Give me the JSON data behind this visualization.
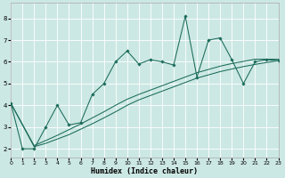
{
  "xlabel": "Humidex (Indice chaleur)",
  "bg_color": "#cce8e4",
  "line_color": "#1a6b5a",
  "xlim": [
    0,
    23
  ],
  "ylim": [
    1.6,
    8.7
  ],
  "xticks": [
    0,
    1,
    2,
    3,
    4,
    5,
    6,
    7,
    8,
    9,
    10,
    11,
    12,
    13,
    14,
    15,
    16,
    17,
    18,
    19,
    20,
    21,
    22,
    23
  ],
  "yticks": [
    2,
    3,
    4,
    5,
    6,
    7,
    8
  ],
  "line1_x": [
    0,
    1,
    2,
    3,
    4,
    5,
    6,
    7,
    8,
    9,
    10,
    11,
    12,
    13,
    14,
    15,
    16,
    17,
    18,
    19,
    20,
    21,
    22,
    23
  ],
  "line1_y": [
    4.1,
    2.0,
    2.0,
    3.0,
    4.0,
    3.1,
    3.2,
    4.5,
    5.0,
    6.0,
    6.5,
    5.9,
    6.1,
    6.0,
    5.85,
    8.1,
    5.3,
    7.0,
    7.1,
    6.1,
    5.0,
    6.0,
    6.1,
    6.05
  ],
  "line2_x": [
    0,
    2,
    3,
    4,
    5,
    6,
    7,
    8,
    9,
    10,
    11,
    12,
    13,
    14,
    15,
    16,
    17,
    18,
    19,
    20,
    21,
    22,
    23
  ],
  "line2_y": [
    4.1,
    2.1,
    2.25,
    2.45,
    2.65,
    2.9,
    3.15,
    3.42,
    3.7,
    4.0,
    4.25,
    4.45,
    4.65,
    4.85,
    5.05,
    5.25,
    5.4,
    5.55,
    5.67,
    5.78,
    5.88,
    5.97,
    6.05
  ],
  "line3_x": [
    0,
    2,
    3,
    4,
    5,
    6,
    7,
    8,
    9,
    10,
    11,
    12,
    13,
    14,
    15,
    16,
    17,
    18,
    19,
    20,
    21,
    22,
    23
  ],
  "line3_y": [
    4.1,
    2.15,
    2.38,
    2.62,
    2.88,
    3.14,
    3.42,
    3.7,
    4.0,
    4.28,
    4.5,
    4.7,
    4.9,
    5.1,
    5.3,
    5.5,
    5.65,
    5.8,
    5.92,
    6.02,
    6.12,
    6.12,
    6.12
  ]
}
